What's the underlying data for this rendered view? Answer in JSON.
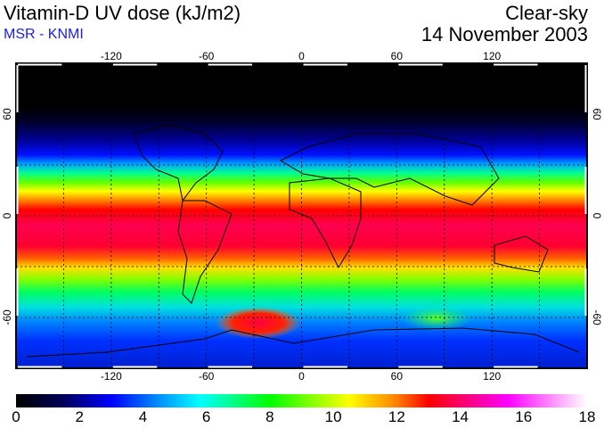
{
  "header": {
    "title": "Vitamin-D UV dose (kJ/m2)",
    "source": "MSR - KNMI",
    "condition": "Clear-sky",
    "date": "14 November 2003"
  },
  "map": {
    "lon_range": [
      -180,
      180
    ],
    "lat_range": [
      -90,
      90
    ],
    "lon_ticks": [
      "-120",
      "-60",
      "0",
      "60",
      "120"
    ],
    "lon_tick_values": [
      -120,
      -60,
      0,
      60,
      120
    ],
    "lat_ticks": [
      "60",
      "0",
      "-60"
    ],
    "lat_tick_values": [
      60,
      0,
      -60
    ],
    "grid_spacing_deg": 30
  },
  "colorbar": {
    "min": 0,
    "max": 18,
    "labels": [
      "0",
      "2",
      "4",
      "6",
      "8",
      "10",
      "12",
      "14",
      "16",
      "18"
    ],
    "stops": [
      {
        "v": 0,
        "c": "#000000"
      },
      {
        "v": 1.5,
        "c": "#00005a"
      },
      {
        "v": 3,
        "c": "#0000ff"
      },
      {
        "v": 4.5,
        "c": "#0090ff"
      },
      {
        "v": 5.8,
        "c": "#00ffff"
      },
      {
        "v": 8,
        "c": "#00ff00"
      },
      {
        "v": 10.5,
        "c": "#ffff00"
      },
      {
        "v": 12,
        "c": "#ff8000"
      },
      {
        "v": 13,
        "c": "#ff0000"
      },
      {
        "v": 15.5,
        "c": "#ff00ff"
      },
      {
        "v": 18,
        "c": "#ffffff"
      }
    ]
  }
}
